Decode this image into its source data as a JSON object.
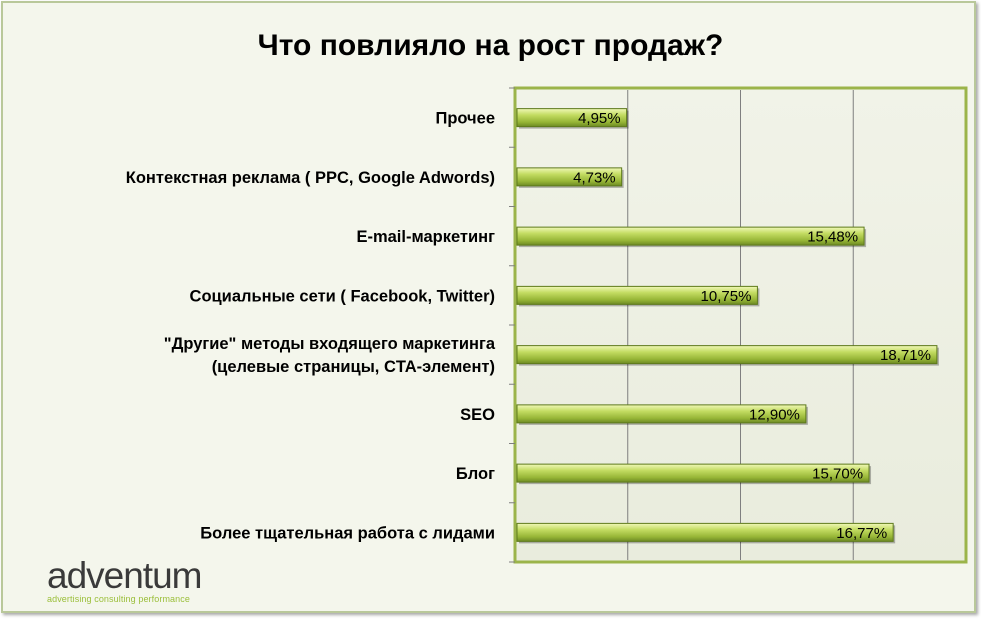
{
  "chart_data": {
    "type": "bar",
    "orientation": "horizontal",
    "title": "Что повлияло на рост продаж?",
    "categories": [
      "Прочее",
      "Контекстная реклама ( PPC, Google Adwords)",
      "E-mail-маркетинг",
      "Социальные сети ( Facebook, Twitter)",
      [
        "\"Другие\" методы входящего маркетинга",
        "(целевые страницы, CTA-элемент)"
      ],
      "SEO",
      "Блог",
      "Более тщательная работа с лидами"
    ],
    "values": [
      4.95,
      4.73,
      15.48,
      10.75,
      18.71,
      12.9,
      15.7,
      16.77
    ],
    "value_labels": [
      "4,95%",
      "4,73%",
      "15,48%",
      "10,75%",
      "18,71%",
      "12,90%",
      "15,70%",
      "16,77%"
    ],
    "xlim": [
      0,
      20
    ],
    "grid_step": 5,
    "grid": true,
    "colors": {
      "bar": "#9bbb3c",
      "bar_light": "#e4f09a",
      "bar_dark": "#6e8a22",
      "plot_bg": "#eef0e4",
      "plot_border": "#9bb44a",
      "frame_bg": "#f4f6ec"
    }
  },
  "logo": {
    "word": "adventum",
    "tagline": "advertising consulting performance"
  }
}
